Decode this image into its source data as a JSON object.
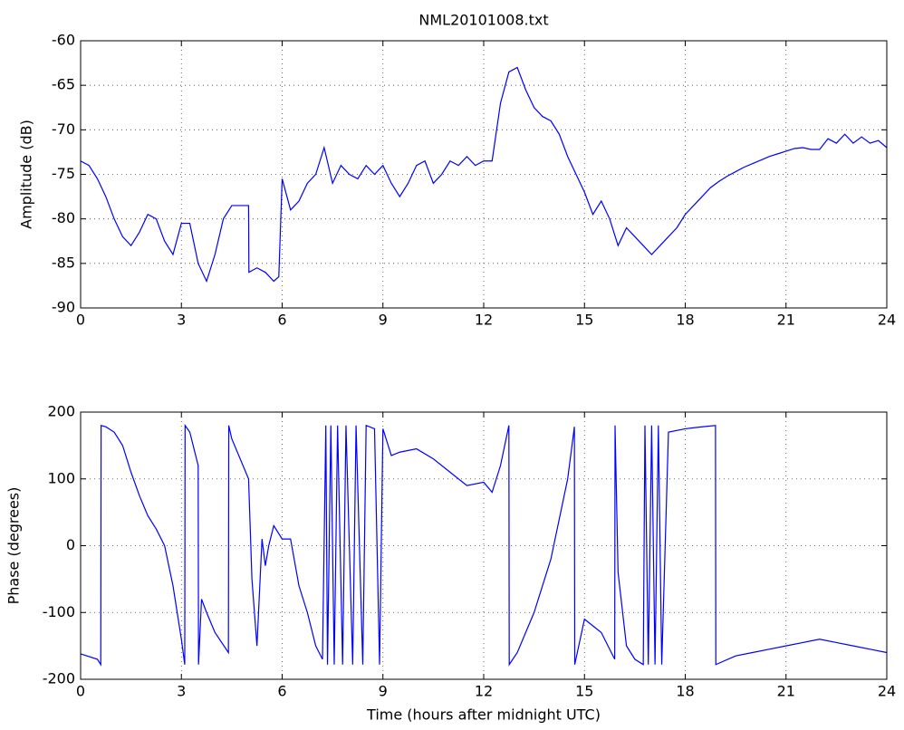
{
  "chart_data": [
    {
      "type": "line",
      "title": "NML20101008.txt",
      "y_label": "Amplitude (dB)",
      "color": "#0000ff",
      "grid": true,
      "x": [
        0,
        0.25,
        0.5,
        0.75,
        1,
        1.25,
        1.5,
        1.75,
        2,
        2.25,
        2.5,
        2.75,
        3,
        3.25,
        3.5,
        3.75,
        4,
        4.25,
        4.5,
        4.75,
        5,
        5.01,
        5.25,
        5.5,
        5.75,
        5.9,
        6,
        6.25,
        6.5,
        6.75,
        7,
        7.25,
        7.5,
        7.75,
        8,
        8.25,
        8.5,
        8.75,
        9,
        9.25,
        9.5,
        9.75,
        10,
        10.25,
        10.5,
        10.75,
        11,
        11.25,
        11.5,
        11.75,
        12,
        12.25,
        12.5,
        12.75,
        13,
        13.25,
        13.5,
        13.75,
        14,
        14.25,
        14.5,
        14.75,
        15,
        15.25,
        15.5,
        15.75,
        16,
        16.25,
        16.5,
        16.75,
        17,
        17.25,
        17.5,
        17.75,
        18,
        18.25,
        18.5,
        18.75,
        19,
        19.25,
        19.5,
        19.75,
        20,
        20.25,
        20.5,
        20.75,
        21,
        21.25,
        21.5,
        21.75,
        22,
        22.25,
        22.5,
        22.75,
        23,
        23.25,
        23.5,
        23.75,
        24
      ],
      "values": [
        -73.5,
        -74,
        -75.5,
        -77.5,
        -80,
        -82,
        -83,
        -81.5,
        -79.5,
        -80,
        -82.5,
        -84,
        -80.5,
        -80.5,
        -85,
        -87,
        -84,
        -80,
        -78.5,
        -78.5,
        -78.5,
        -86,
        -85.5,
        -86,
        -87,
        -86.5,
        -75.5,
        -79,
        -78,
        -76,
        -75,
        -72,
        -76,
        -74,
        -75,
        -75.5,
        -74,
        -75,
        -74,
        -76,
        -77.5,
        -76,
        -74,
        -73.5,
        -76,
        -75,
        -73.5,
        -74,
        -73,
        -74,
        -73.5,
        -73.5,
        -67,
        -63.5,
        -63,
        -65.5,
        -67.5,
        -68.5,
        -69,
        -70.5,
        -73,
        -75,
        -77,
        -79.5,
        -78,
        -80,
        -83,
        -81,
        -82,
        -83,
        -84,
        -83,
        -82,
        -81,
        -79.5,
        -78.5,
        -77.5,
        -76.5,
        -75.8,
        -75.2,
        -74.7,
        -74.2,
        -73.8,
        -73.4,
        -73,
        -72.7,
        -72.4,
        -72.1,
        -72,
        -72.2,
        -72.2,
        -71,
        -71.5,
        -70.5,
        -71.5,
        -70.8,
        -71.5,
        -71.2,
        -72
      ],
      "xlim": [
        0,
        24
      ],
      "xticks": [
        0,
        3,
        6,
        9,
        12,
        15,
        18,
        21,
        24
      ],
      "ylim": [
        -90,
        -60
      ],
      "yticks": [
        -90,
        -85,
        -80,
        -75,
        -70,
        -65,
        -60
      ]
    },
    {
      "type": "line",
      "y_label": "Phase (degrees)",
      "x_label": "Time (hours after midnight UTC)",
      "color": "#0000ff",
      "grid": true,
      "x": [
        0,
        0.5,
        0.6,
        0.61,
        0.75,
        1,
        1.25,
        1.5,
        1.75,
        2,
        2.25,
        2.5,
        2.75,
        3,
        3.1,
        3.11,
        3.25,
        3.5,
        3.51,
        3.6,
        3.75,
        4,
        4.4,
        4.41,
        4.5,
        5,
        5.1,
        5.25,
        5.4,
        5.5,
        5.6,
        5.75,
        6,
        6.25,
        6.5,
        6.75,
        7,
        7.2,
        7.3,
        7.35,
        7.45,
        7.55,
        7.65,
        7.8,
        7.9,
        8.1,
        8.2,
        8.4,
        8.5,
        8.75,
        8.9,
        9,
        9.25,
        9.5,
        10,
        10.5,
        11,
        11.5,
        12,
        12.25,
        12.5,
        12.75,
        12.76,
        13,
        13.5,
        14,
        14.5,
        14.7,
        14.71,
        15,
        15.5,
        15.9,
        15.91,
        16,
        16.25,
        16.5,
        16.75,
        16.8,
        16.9,
        17,
        17.1,
        17.2,
        17.3,
        17.5,
        18,
        18.5,
        18.9,
        18.91,
        19.5,
        20,
        20.5,
        21,
        21.5,
        22,
        22.5,
        23,
        23.5,
        24
      ],
      "values": [
        -162,
        -170,
        -178,
        180,
        178,
        170,
        150,
        110,
        75,
        45,
        25,
        0,
        -60,
        -140,
        -178,
        180,
        170,
        120,
        -178,
        -80,
        -100,
        -130,
        -160,
        180,
        160,
        100,
        -50,
        -150,
        10,
        -30,
        0,
        30,
        10,
        10,
        -60,
        -100,
        -150,
        -170,
        180,
        -178,
        180,
        -178,
        180,
        -178,
        180,
        -178,
        180,
        -178,
        180,
        175,
        -178,
        175,
        135,
        140,
        145,
        130,
        110,
        90,
        95,
        80,
        120,
        180,
        -178,
        -160,
        -100,
        -20,
        100,
        178,
        -178,
        -110,
        -130,
        -170,
        180,
        -40,
        -150,
        -170,
        -178,
        180,
        -178,
        180,
        -178,
        180,
        -178,
        170,
        175,
        178,
        180,
        -178,
        -165,
        -160,
        -155,
        -150,
        -145,
        -140,
        -145,
        -150,
        -155,
        -160
      ],
      "xlim": [
        0,
        24
      ],
      "xticks": [
        0,
        3,
        6,
        9,
        12,
        15,
        18,
        21,
        24
      ],
      "ylim": [
        -200,
        200
      ],
      "yticks": [
        -200,
        -100,
        0,
        100,
        200
      ]
    }
  ]
}
